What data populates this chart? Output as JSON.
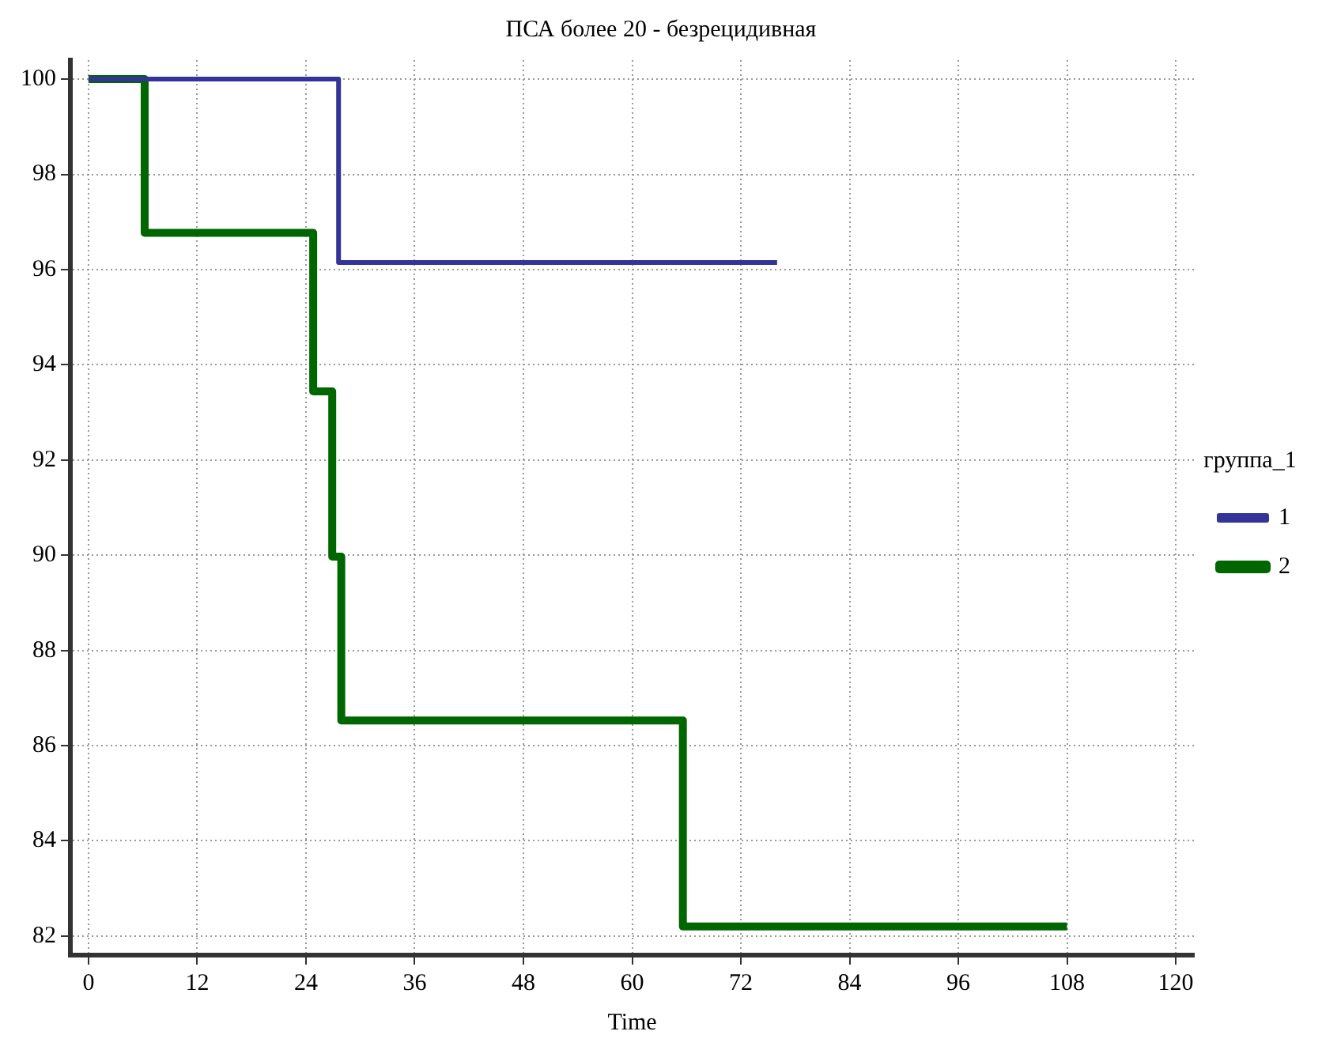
{
  "chart_data": {
    "type": "step",
    "title": "ПСА более 20 - безрецидивная",
    "xlabel": "Time",
    "legend_title": "группа_1",
    "legend": "right",
    "grid": true,
    "xlim": [
      -2,
      122
    ],
    "xticks": [
      0,
      12,
      24,
      36,
      48,
      60,
      72,
      84,
      96,
      108,
      120
    ],
    "ylim": [
      81.6,
      100.4
    ],
    "yticks": [
      82,
      84,
      86,
      88,
      90,
      92,
      94,
      96,
      98,
      100
    ],
    "series": [
      {
        "name": "1",
        "color": "#333399",
        "x": [
          0,
          27.6,
          76
        ],
        "values": [
          100,
          96.15,
          96.15
        ]
      },
      {
        "name": "2",
        "color": "#006600",
        "x": [
          0,
          6.2,
          24.8,
          26.9,
          27.9,
          65.6,
          108
        ],
        "values": [
          100,
          96.77,
          93.44,
          89.97,
          86.53,
          82.2,
          82.2
        ]
      }
    ]
  }
}
